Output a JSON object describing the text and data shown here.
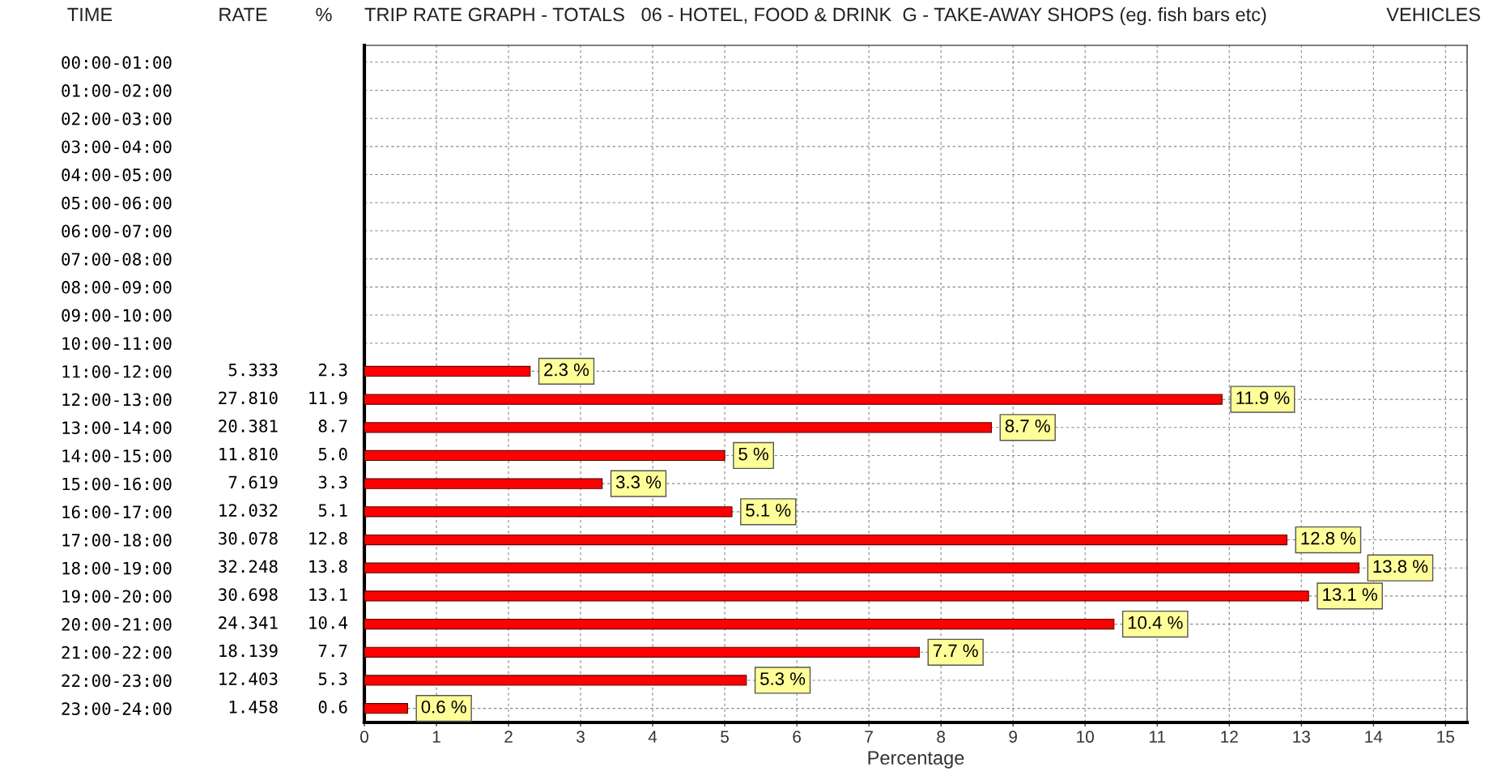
{
  "chart_data": {
    "type": "bar",
    "orientation": "horizontal",
    "title": "TRIP RATE GRAPH - TOTALS   06 - HOTEL, FOOD & DRINK  G - TAKE-AWAY SHOPS (eg. fish bars etc)",
    "subtitle": "VEHICLES",
    "xlabel": "Percentage",
    "categories": [
      "00:00-01:00",
      "01:00-02:00",
      "02:00-03:00",
      "03:00-04:00",
      "04:00-05:00",
      "05:00-06:00",
      "06:00-07:00",
      "07:00-08:00",
      "08:00-09:00",
      "09:00-10:00",
      "10:00-11:00",
      "11:00-12:00",
      "12:00-13:00",
      "13:00-14:00",
      "14:00-15:00",
      "15:00-16:00",
      "16:00-17:00",
      "17:00-18:00",
      "18:00-19:00",
      "19:00-20:00",
      "20:00-21:00",
      "21:00-22:00",
      "22:00-23:00",
      "23:00-24:00"
    ],
    "values": [
      null,
      null,
      null,
      null,
      null,
      null,
      null,
      null,
      null,
      null,
      null,
      2.3,
      11.9,
      8.7,
      5,
      3.3,
      5.1,
      12.8,
      13.8,
      13.1,
      10.4,
      7.7,
      5.3,
      0.6
    ],
    "value_labels": [
      null,
      null,
      null,
      null,
      null,
      null,
      null,
      null,
      null,
      null,
      null,
      "2.3 %",
      "11.9 %",
      "8.7 %",
      "5 %",
      "3.3 %",
      "5.1 %",
      "12.8 %",
      "13.8 %",
      "13.1 %",
      "10.4 %",
      "7.7 %",
      "5.3 %",
      "0.6 %"
    ],
    "color": "#ff0000",
    "xlim": [
      0,
      15.3
    ],
    "xticks": [
      0,
      1,
      2,
      3,
      4,
      5,
      6,
      7,
      8,
      9,
      10,
      11,
      12,
      13,
      14,
      15
    ],
    "grid": true,
    "annotations": [
      "TIME",
      "RATE",
      "%",
      "5.333",
      "27.810",
      "20.381",
      "11.810",
      "7.619",
      "12.032",
      "30.078",
      "32.248",
      "30.698",
      "24.341",
      "18.139",
      "12.403",
      "1.458",
      "2.3",
      "11.9",
      "8.7",
      "5.0",
      "3.3",
      "5.1",
      "12.8",
      "13.8",
      "13.1",
      "10.4",
      "7.7",
      "5.3",
      "0.6"
    ]
  }
}
